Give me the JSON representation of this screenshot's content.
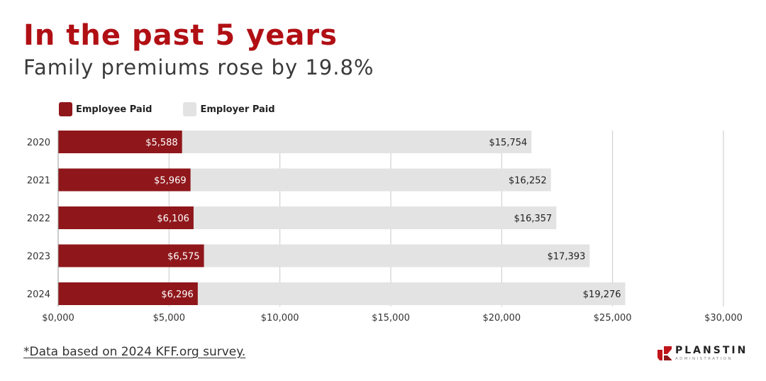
{
  "header": {
    "title": "In the past 5 years",
    "subtitle": "Family premiums rose by 19.8%"
  },
  "footnote": "*Data based on 2024 KFF.org survey.",
  "logo": {
    "name": "PLANSTIN",
    "tagline": "ADMINISTRATION"
  },
  "colors": {
    "employee": "#8f171b",
    "employer": "#e3e3e3",
    "title": "#b00f14"
  },
  "chart_data": {
    "type": "bar",
    "orientation": "horizontal",
    "stacked": true,
    "categories": [
      "2020",
      "2021",
      "2022",
      "2023",
      "2024"
    ],
    "series": [
      {
        "name": "Employee Paid",
        "values": [
          5588,
          5969,
          6106,
          6575,
          6296
        ],
        "labels": [
          "$5,588",
          "$5,969",
          "$6,106",
          "$6,575",
          "$6,296"
        ]
      },
      {
        "name": "Employer Paid",
        "values": [
          15754,
          16252,
          16357,
          17393,
          19276
        ],
        "labels": [
          "$15,754",
          "$16,252",
          "$16,357",
          "$17,393",
          "$19,276"
        ]
      }
    ],
    "xlim": [
      0,
      30000
    ],
    "xticks": [
      0,
      5000,
      10000,
      15000,
      20000,
      25000,
      30000
    ],
    "xtick_labels": [
      "$0,000",
      "$5,000",
      "$10,000",
      "$15,000",
      "$20,000",
      "$25,000",
      "$30,000"
    ],
    "legend_position": "top-left",
    "grid": true
  }
}
